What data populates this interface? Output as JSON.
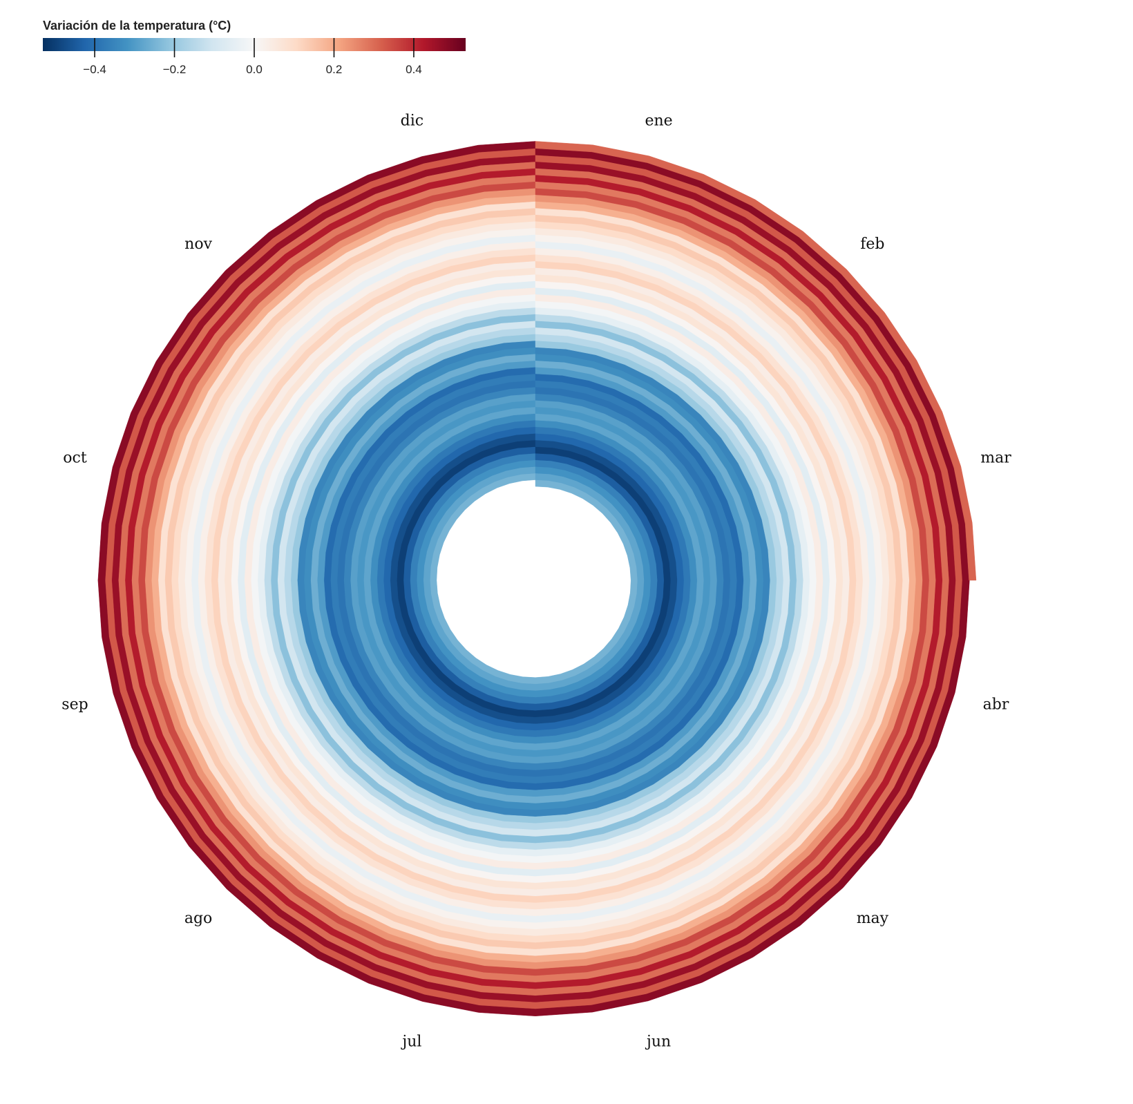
{
  "chart_data": {
    "type": "heatmap",
    "subtype": "radial-spiral",
    "title": "",
    "colorbar": {
      "title": "Variación de la temperatura (°C)",
      "ticks": [
        -0.4,
        -0.2,
        0.0,
        0.2,
        0.4
      ],
      "tick_labels": [
        "−0.4",
        "−0.2",
        "0.0",
        "0.2",
        "0.4"
      ],
      "range": [
        -0.53,
        0.53
      ],
      "colormap": "RdBu_r",
      "colors": [
        "#053061",
        "#2166ac",
        "#4393c3",
        "#92c5de",
        "#d1e5f0",
        "#f7f7f7",
        "#fddbc7",
        "#f4a582",
        "#d6604d",
        "#b2182b",
        "#67001f"
      ]
    },
    "months": [
      "ene",
      "feb",
      "mar",
      "abr",
      "may",
      "jun",
      "jul",
      "ago",
      "sep",
      "oct",
      "nov",
      "dic"
    ],
    "start_month": "ene",
    "end_month": "feb",
    "ring_values": [
      -0.25,
      -0.28,
      -0.32,
      -0.36,
      -0.44,
      -0.5,
      -0.47,
      -0.42,
      -0.38,
      -0.33,
      -0.28,
      -0.31,
      -0.29,
      -0.35,
      -0.39,
      -0.37,
      -0.41,
      -0.3,
      -0.26,
      -0.33,
      -0.35,
      -0.2,
      -0.15,
      -0.1,
      -0.22,
      -0.14,
      -0.05,
      -0.01,
      0.04,
      -0.06,
      0.01,
      0.07,
      0.04,
      0.12,
      0.08,
      0.03,
      -0.04,
      0.02,
      0.05,
      0.1,
      0.14,
      0.08,
      0.19,
      0.24,
      0.35,
      0.28,
      0.42,
      0.3,
      0.46,
      0.33,
      0.48,
      0.31
    ]
  }
}
